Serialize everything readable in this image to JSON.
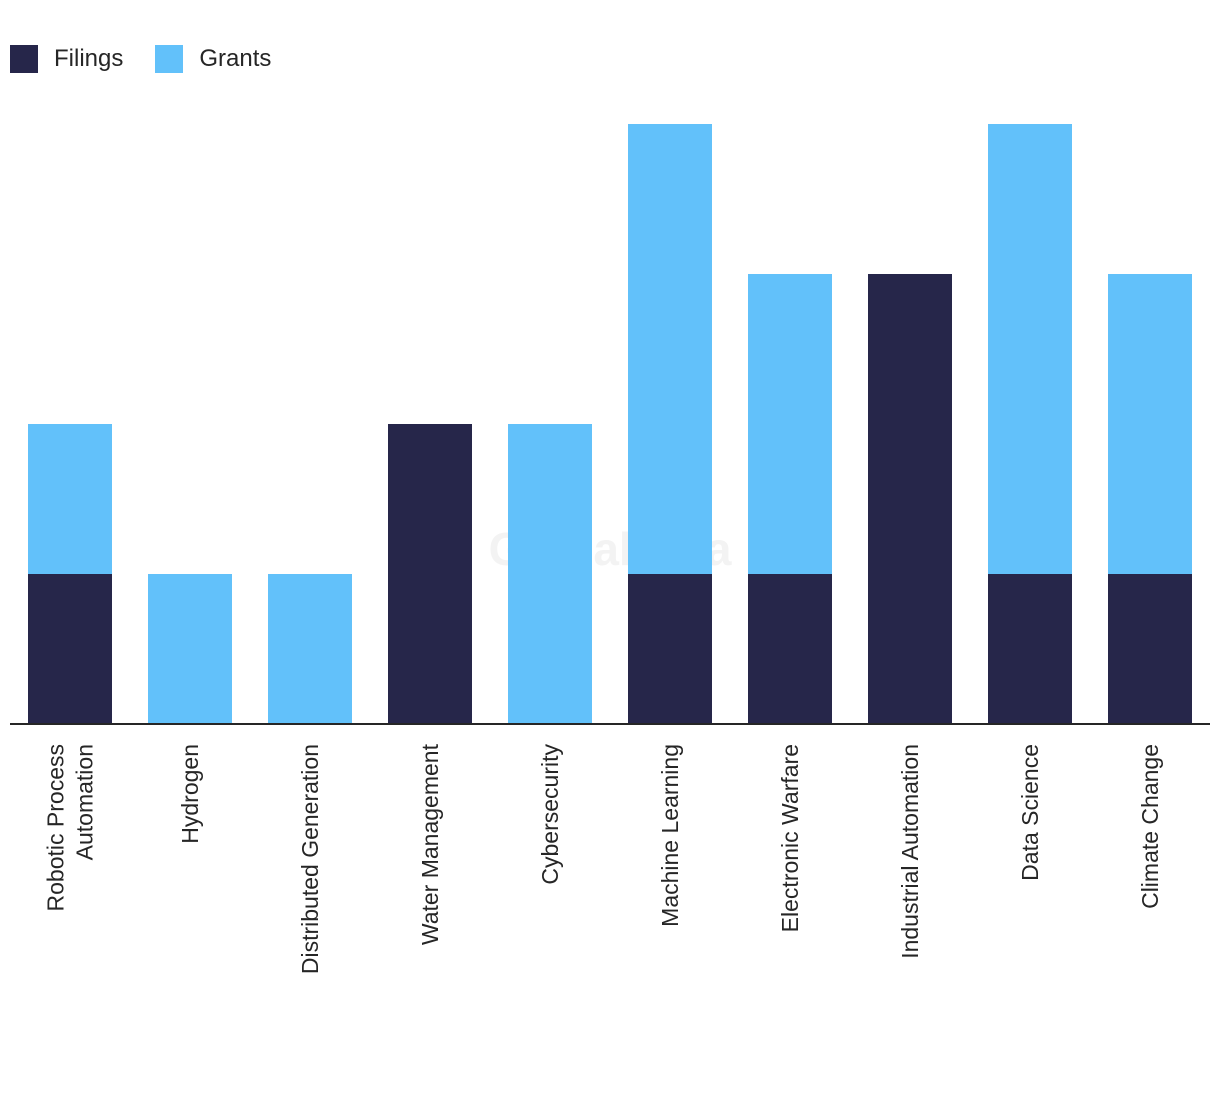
{
  "chart_data": {
    "type": "bar",
    "stacked": true,
    "categories": [
      "Robotic Process Automation",
      "Hydrogen",
      "Distributed Generation",
      "Water Management",
      "Cybersecurity",
      "Machine Learning",
      "Electronic Warfare",
      "Industrial Automation",
      "Data Science",
      "Climate Change"
    ],
    "category_lines": [
      [
        "Robotic Process",
        "Automation"
      ],
      [
        "Hydrogen"
      ],
      [
        "Distributed Generation"
      ],
      [
        "Water Management"
      ],
      [
        "Cybersecurity"
      ],
      [
        "Machine Learning"
      ],
      [
        "Electronic Warfare"
      ],
      [
        "Industrial Automation"
      ],
      [
        "Data Science"
      ],
      [
        "Climate Change"
      ]
    ],
    "series": [
      {
        "name": "Filings",
        "color": "#26264a",
        "values": [
          1,
          0,
          0,
          2,
          0,
          1,
          1,
          3,
          1,
          1
        ]
      },
      {
        "name": "Grants",
        "color": "#62c1fa",
        "values": [
          1,
          1,
          1,
          0,
          2,
          3,
          2,
          0,
          3,
          2
        ]
      }
    ],
    "ylim": [
      0,
      4
    ],
    "title": "",
    "xlabel": "",
    "ylabel": "",
    "grid": false,
    "legend_position": "top-left",
    "watermark": "GlobalData"
  }
}
